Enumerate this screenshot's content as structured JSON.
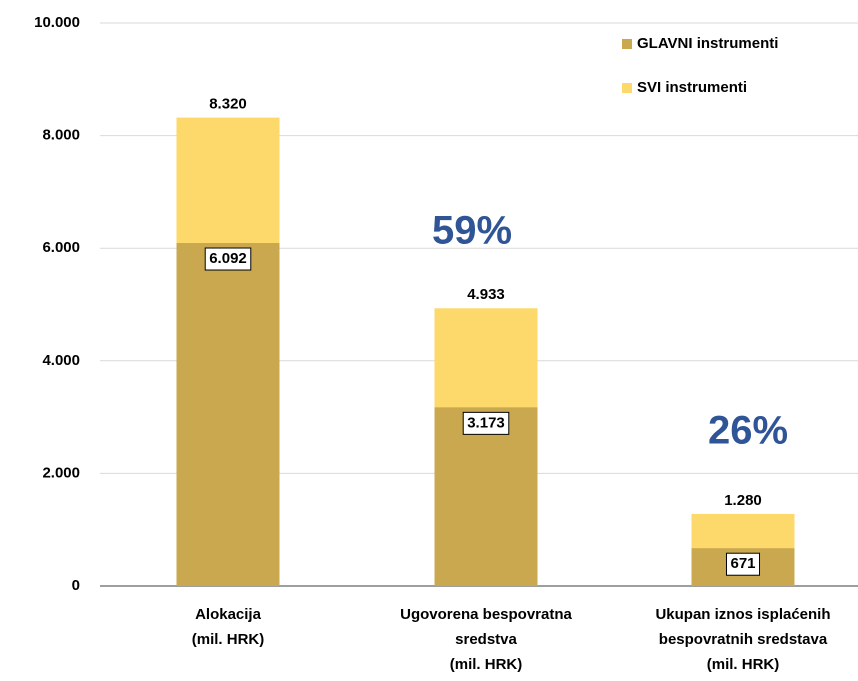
{
  "chart_data": {
    "type": "bar",
    "overlap": true,
    "categories": [
      [
        "Alokacija",
        "(mil. HRK)"
      ],
      [
        "Ugovorena bespovratna",
        "sredstva",
        "(mil. HRK)"
      ],
      [
        "Ukupan iznos isplaćenih",
        "bespovratnih sredstava",
        "(mil. HRK)"
      ]
    ],
    "series": [
      {
        "name": "SVI instrumenti",
        "color": "#fcd96a",
        "values": [
          8320,
          4933,
          1280
        ],
        "value_labels": [
          "8.320",
          "4.933",
          "1.280"
        ]
      },
      {
        "name": "GLAVNI instrumenti",
        "color": "#c9a84f",
        "values": [
          6092,
          3173,
          671
        ],
        "value_labels": [
          "6.092",
          "3.173",
          "671"
        ]
      }
    ],
    "legend_order": [
      1,
      0
    ],
    "annotations": [
      "59%",
      "26%"
    ],
    "annotation_color": "#2f5597",
    "ylim": [
      0,
      10000
    ],
    "yticks": [
      0,
      {
        "value": 2000,
        "label": "2.000"
      },
      {
        "value": 4000,
        "label": "4.000"
      },
      {
        "value": 6000,
        "label": "6.000"
      },
      {
        "value": 8000,
        "label": "8.000"
      },
      {
        "value": 10000,
        "label": "10.000"
      }
    ],
    "grid": true,
    "legend": "upper right"
  }
}
